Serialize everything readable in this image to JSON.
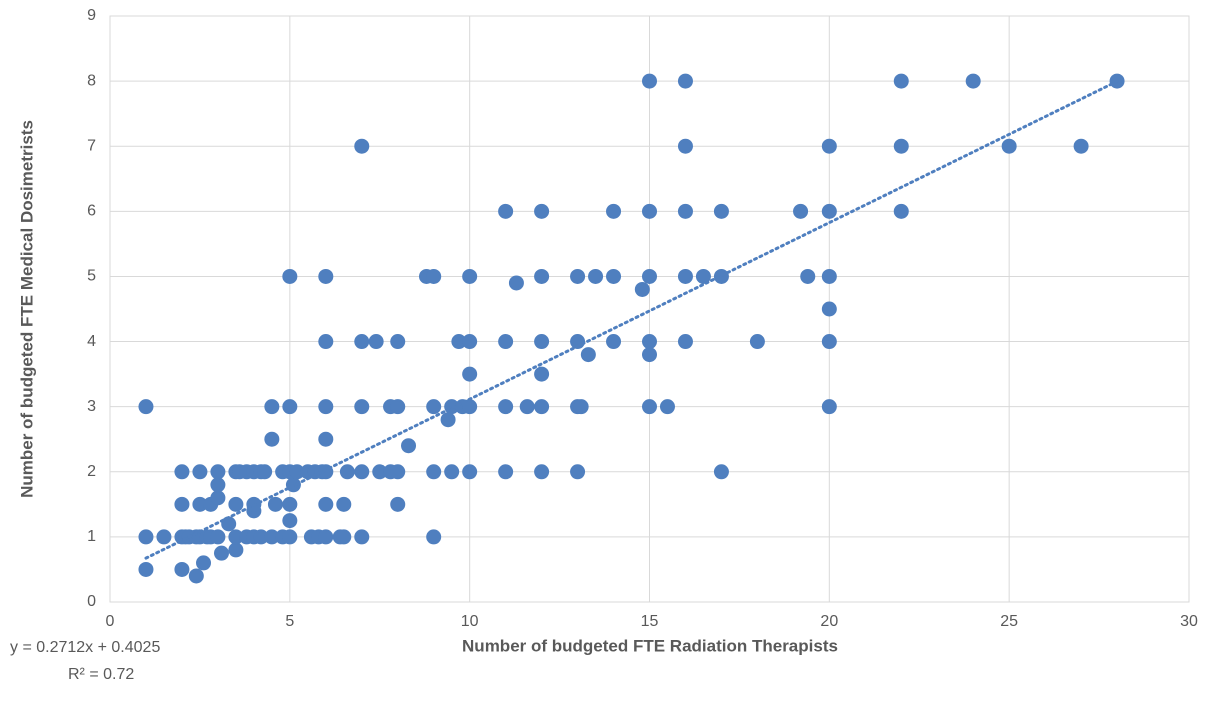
{
  "chart_data": {
    "type": "scatter",
    "xlabel": "Number of budgeted FTE Radiation Therapists",
    "ylabel": "Number of budgeted FTE Medical Dosimetrists",
    "color": "#4f7fbf",
    "grid": true,
    "xlim": [
      0,
      30
    ],
    "xticks": [
      0,
      5,
      10,
      15,
      20,
      25,
      30
    ],
    "ylim": [
      0,
      9
    ],
    "yticks": [
      0,
      1,
      2,
      3,
      4,
      5,
      6,
      7,
      8,
      9
    ],
    "x": [
      1,
      2,
      2.4,
      2.6,
      3.1,
      3.5,
      1,
      1.5,
      2,
      2.1,
      2.2,
      2.4,
      2.5,
      2.7,
      2.8,
      3,
      3.5,
      3.8,
      4,
      4.2,
      4.5,
      4.8,
      5,
      5.6,
      5.8,
      6,
      6.4,
      6.5,
      7,
      9,
      3.3,
      5,
      4,
      2,
      2.5,
      2.8,
      3.5,
      4,
      4.6,
      5,
      6,
      6.5,
      8,
      3,
      3,
      5.1,
      2,
      2.5,
      3,
      3.5,
      3.6,
      3.8,
      4,
      4.2,
      4.3,
      4.8,
      5,
      5.2,
      5.5,
      5.7,
      5.9,
      6,
      6.6,
      7,
      7.5,
      7.8,
      8,
      9,
      9.5,
      10,
      11,
      12,
      13,
      17,
      8.3,
      4.5,
      6,
      9.4,
      1,
      4.5,
      5,
      6,
      7,
      7.8,
      8,
      9,
      9.5,
      9.8,
      10,
      11,
      11.6,
      12,
      13,
      13.1,
      15,
      15.5,
      20,
      10,
      12,
      13.3,
      15,
      6,
      7,
      7.4,
      8,
      9.7,
      10,
      11,
      12,
      13,
      14,
      15,
      16,
      18,
      20,
      20,
      14.8,
      11.3,
      5,
      6,
      8.8,
      9,
      10,
      12,
      13,
      13.5,
      14,
      15,
      16,
      16.5,
      17,
      19.4,
      20,
      11,
      12,
      14,
      15,
      16,
      17,
      19.2,
      20,
      22,
      7,
      16,
      20,
      22,
      25,
      27,
      15,
      16,
      22,
      24,
      28
    ],
    "values": [
      0.5,
      0.5,
      0.4,
      0.6,
      0.75,
      0.8,
      1,
      1,
      1,
      1,
      1,
      1,
      1,
      1,
      1,
      1,
      1,
      1,
      1,
      1,
      1,
      1,
      1,
      1,
      1,
      1,
      1,
      1,
      1,
      1,
      1.2,
      1.25,
      1.4,
      1.5,
      1.5,
      1.5,
      1.5,
      1.5,
      1.5,
      1.5,
      1.5,
      1.5,
      1.5,
      1.6,
      1.8,
      1.8,
      2,
      2,
      2,
      2,
      2,
      2,
      2,
      2,
      2,
      2,
      2,
      2,
      2,
      2,
      2,
      2,
      2,
      2,
      2,
      2,
      2,
      2,
      2,
      2,
      2,
      2,
      2,
      2,
      2.4,
      2.5,
      2.5,
      2.8,
      3,
      3,
      3,
      3,
      3,
      3,
      3,
      3,
      3,
      3,
      3,
      3,
      3,
      3,
      3,
      3,
      3,
      3,
      3,
      3.5,
      3.5,
      3.8,
      3.8,
      4,
      4,
      4,
      4,
      4,
      4,
      4,
      4,
      4,
      4,
      4,
      4,
      4,
      4,
      4.5,
      4.8,
      4.9,
      5,
      5,
      5,
      5,
      5,
      5,
      5,
      5,
      5,
      5,
      5,
      5,
      5,
      5,
      5,
      6,
      6,
      6,
      6,
      6,
      6,
      6,
      6,
      6,
      7,
      7,
      7,
      7,
      7,
      7,
      8,
      8,
      8,
      8,
      8
    ],
    "trendline": {
      "label": "y = 0.2712x + 0.4025",
      "r2_label": "R² = 0.72",
      "slope": 0.2712,
      "intercept": 0.4025,
      "x_range": [
        1,
        28
      ]
    }
  }
}
